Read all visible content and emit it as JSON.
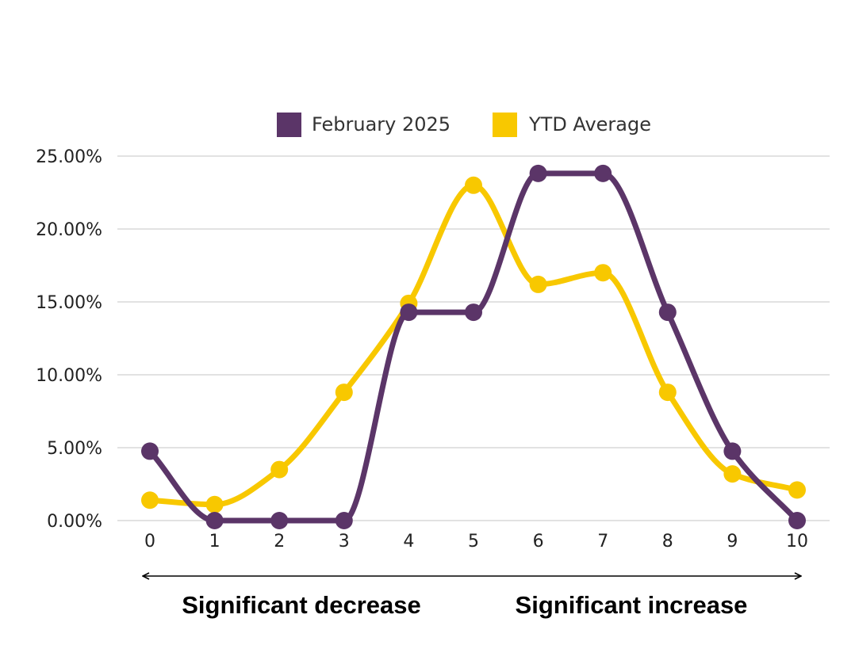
{
  "chart_data": {
    "type": "line",
    "smooth": true,
    "x": [
      0,
      1,
      2,
      3,
      4,
      5,
      6,
      7,
      8,
      9,
      10
    ],
    "x_tick_labels": [
      "0",
      "1",
      "2",
      "3",
      "4",
      "5",
      "6",
      "7",
      "8",
      "9",
      "10"
    ],
    "ylim": [
      0,
      25
    ],
    "y_ticks": [
      0,
      5,
      10,
      15,
      20,
      25
    ],
    "y_tick_labels": [
      "0.00%",
      "5.00%",
      "10.00%",
      "15.00%",
      "20.00%",
      "25.00%"
    ],
    "grid": true,
    "legend_position": "top",
    "series": [
      {
        "name": "February 2025",
        "color": "#5b3568",
        "values": [
          4.76,
          0,
          0,
          0,
          14.29,
          14.29,
          23.81,
          23.81,
          14.29,
          4.76,
          0
        ]
      },
      {
        "name": "YTD Average",
        "color": "#f8c800",
        "values": [
          1.4,
          1.1,
          3.5,
          8.8,
          14.9,
          23.0,
          16.2,
          17.0,
          8.8,
          3.2,
          2.1
        ]
      }
    ],
    "series_order": [
      1,
      0
    ],
    "caption": {
      "left": "Significant decrease",
      "right": "Significant increase"
    }
  }
}
